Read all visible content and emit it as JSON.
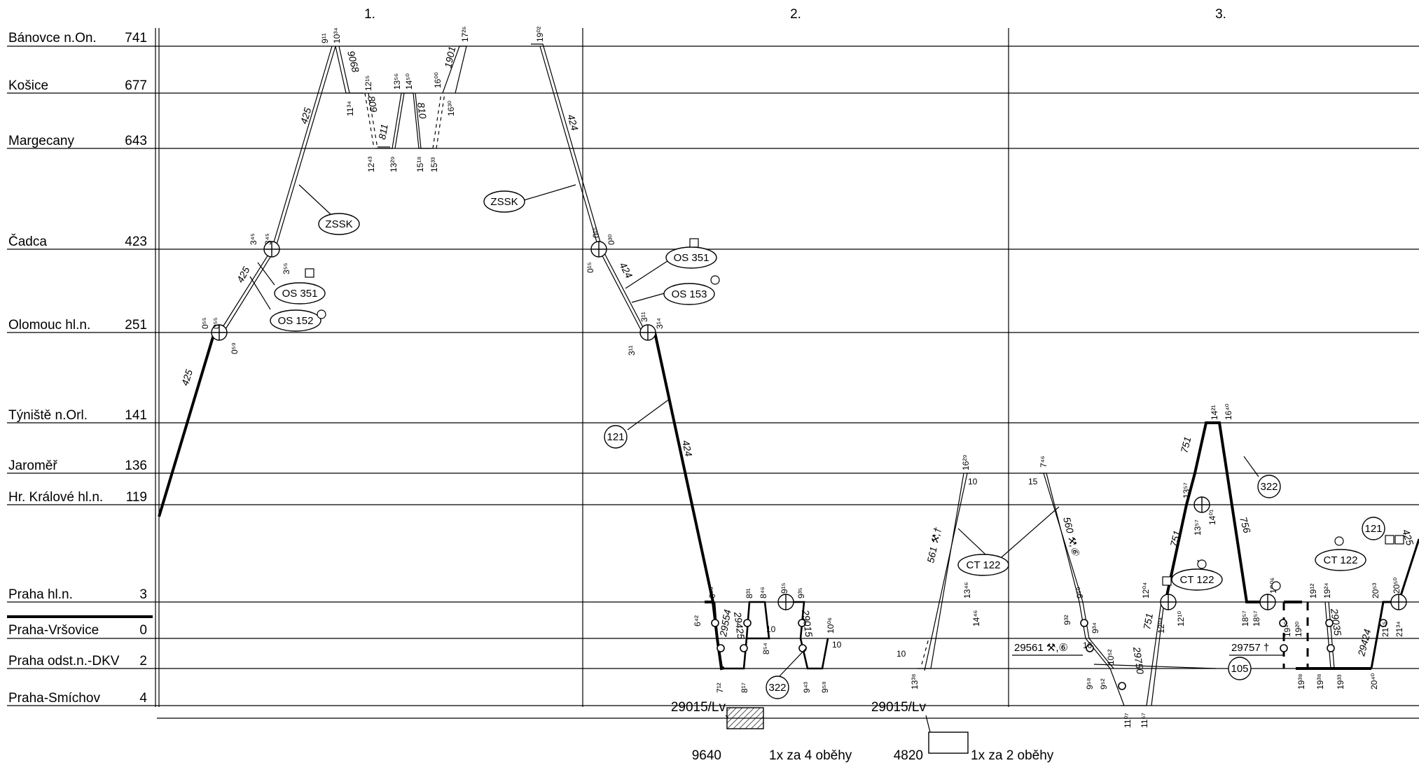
{
  "stations": [
    {
      "name": "Bánovce n.On.",
      "km": "741"
    },
    {
      "name": "Košice",
      "km": "677"
    },
    {
      "name": "Margecany",
      "km": "643"
    },
    {
      "name": "Čadca",
      "km": "423"
    },
    {
      "name": "Olomouc hl.n.",
      "km": "251"
    },
    {
      "name": "Týniště n.Orl.",
      "km": "141"
    },
    {
      "name": "Jaroměř",
      "km": "136"
    },
    {
      "name": "Hr. Králové hl.n.",
      "km": "119"
    },
    {
      "name": "Praha hl.n.",
      "km": "3"
    },
    {
      "name": "Praha-Vršovice",
      "km": "0"
    },
    {
      "name": "Praha odst.n.-DKV",
      "km": "2"
    },
    {
      "name": "Praha-Smíchov",
      "km": "4"
    }
  ],
  "days": [
    "1.",
    "2.",
    "3."
  ],
  "trains": [
    {
      "num": "425"
    },
    {
      "num": "425"
    },
    {
      "num": "425"
    },
    {
      "num": "9068"
    },
    {
      "num": "809"
    },
    {
      "num": "811"
    },
    {
      "num": "810"
    },
    {
      "num": "1901"
    },
    {
      "num": "424"
    },
    {
      "num": "424"
    },
    {
      "num": "424"
    },
    {
      "num": "29554"
    },
    {
      "num": "29425"
    },
    {
      "num": "29015"
    },
    {
      "num": "561 ⚒,†"
    },
    {
      "num": "560 ⚒,⑥"
    },
    {
      "num": "29750"
    },
    {
      "num": "751"
    },
    {
      "num": "751"
    },
    {
      "num": "751"
    },
    {
      "num": "756"
    },
    {
      "num": "29035"
    },
    {
      "num": "29424"
    },
    {
      "num": "425"
    }
  ],
  "bubbles": [
    "ZSSK",
    "OS 351",
    "OS 152",
    "ZSSK",
    "OS 351",
    "OS 153",
    "121",
    "322",
    "CT 122",
    "CT 122",
    "CT 122",
    "322",
    "121",
    "105"
  ],
  "side_labels": [
    "29561 ⚒,⑥",
    "29757 †"
  ],
  "times": [
    {
      "v": "9¹¹"
    },
    {
      "v": "10³⁴"
    },
    {
      "v": "11³⁴"
    },
    {
      "v": "12¹⁵"
    },
    {
      "v": "12⁴³"
    },
    {
      "v": "13²⁹"
    },
    {
      "v": "13⁵⁶"
    },
    {
      "v": "14⁵⁰"
    },
    {
      "v": "15¹⁸"
    },
    {
      "v": "15³³"
    },
    {
      "v": "16⁰⁰"
    },
    {
      "v": "16³⁰"
    },
    {
      "v": "17²⁶"
    },
    {
      "v": "19⁰²"
    },
    {
      "v": "3⁴⁵"
    },
    {
      "v": "3⁴⁵"
    },
    {
      "v": "3⁵⁵"
    },
    {
      "v": "0⁵⁵"
    },
    {
      "v": "0⁵⁵"
    },
    {
      "v": "0⁵⁹"
    },
    {
      "v": "0¹⁵"
    },
    {
      "v": "0¹⁵"
    },
    {
      "v": "0³⁰"
    },
    {
      "v": "3¹¹"
    },
    {
      "v": "3¹¹"
    },
    {
      "v": "3¹⁴"
    },
    {
      "v": "6⁴²"
    },
    {
      "v": "6⁵⁸"
    },
    {
      "v": "7¹²"
    },
    {
      "v": "8¹⁷"
    },
    {
      "v": "8³¹"
    },
    {
      "v": "8⁴⁶"
    },
    {
      "v": "8⁵⁴"
    },
    {
      "v": "9¹⁵"
    },
    {
      "v": "9³⁵"
    },
    {
      "v": "9⁴³"
    },
    {
      "v": "9⁵⁸"
    },
    {
      "v": "10⁰⁶"
    },
    {
      "v": "10"
    },
    {
      "v": "10"
    },
    {
      "v": "13⁴⁶"
    },
    {
      "v": "13³⁸"
    },
    {
      "v": "14⁴⁶"
    },
    {
      "v": "16²⁹"
    },
    {
      "v": "10"
    },
    {
      "v": "10"
    },
    {
      "v": "7⁴⁶"
    },
    {
      "v": "15"
    },
    {
      "v": "9³²"
    },
    {
      "v": "9⁵⁰"
    },
    {
      "v": "9³⁴"
    },
    {
      "v": "10"
    },
    {
      "v": "10⁵²"
    },
    {
      "v": "9⁵⁸"
    },
    {
      "v": "9⁵²"
    },
    {
      "v": "11⁰⁷"
    },
    {
      "v": "11⁵⁷"
    },
    {
      "v": "12⁰⁴"
    },
    {
      "v": "12⁰⁴"
    },
    {
      "v": "12¹⁰"
    },
    {
      "v": "13⁵⁷"
    },
    {
      "v": "13⁵⁷"
    },
    {
      "v": "14⁰¹"
    },
    {
      "v": "14²¹"
    },
    {
      "v": "16⁴⁰"
    },
    {
      "v": "18⁵⁷"
    },
    {
      "v": "18⁵⁷"
    },
    {
      "v": "19⁰⁶"
    },
    {
      "v": "19¹⁰"
    },
    {
      "v": "19²⁰"
    },
    {
      "v": "19¹²"
    },
    {
      "v": "19²⁴"
    },
    {
      "v": "19³⁸"
    },
    {
      "v": "19³⁸"
    },
    {
      "v": "19³³"
    },
    {
      "v": "20⁵³"
    },
    {
      "v": "20⁵⁰"
    },
    {
      "v": "21¹⁵"
    },
    {
      "v": "21³⁴"
    },
    {
      "v": "20⁴⁰"
    }
  ],
  "footer": {
    "left_top": "29015/Lv",
    "left_bottom": "9640",
    "left_text": "1x  za  4  oběhy",
    "right_top": "29015/Lv",
    "right_bottom": "4820",
    "right_box": "BP",
    "right_text": "1x  za  2  oběhy"
  }
}
